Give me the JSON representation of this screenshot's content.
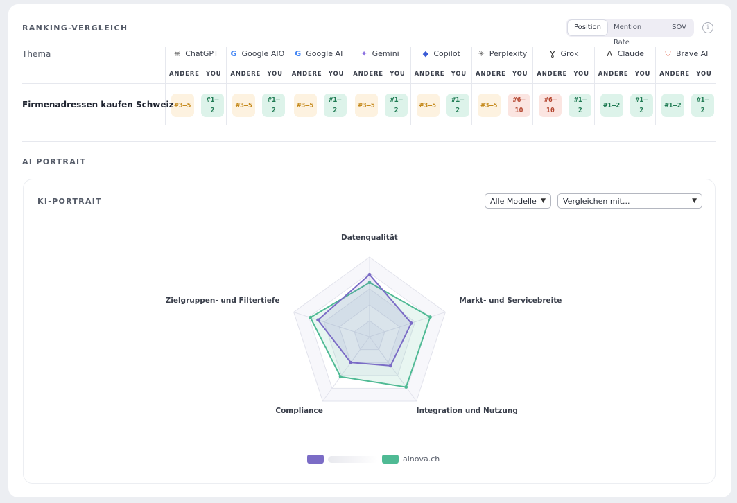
{
  "ranking": {
    "title": "RANKING-VERGLEICH",
    "segments": [
      {
        "label": "Position",
        "active": true
      },
      {
        "label": "Mention Rate",
        "active": false
      },
      {
        "label": "SOV",
        "active": false
      }
    ],
    "info_glyph": "i",
    "topic_header": "Thema",
    "sub_other": "ANDERE",
    "sub_you": "YOU",
    "models": [
      {
        "name": "ChatGPT",
        "icon": "openai-icon"
      },
      {
        "name": "Google AIO",
        "icon": "google-icon"
      },
      {
        "name": "Google AI",
        "icon": "google-icon"
      },
      {
        "name": "Gemini",
        "icon": "gemini-sparkle-icon"
      },
      {
        "name": "Copilot",
        "icon": "copilot-icon"
      },
      {
        "name": "Perplexity",
        "icon": "perplexity-icon"
      },
      {
        "name": "Grok",
        "icon": "grok-icon"
      },
      {
        "name": "Claude",
        "icon": "claude-icon"
      },
      {
        "name": "Brave AI",
        "icon": "brave-lion-icon"
      }
    ],
    "rows": [
      {
        "topic": "Firmenadressen kaufen Schweiz",
        "cells": [
          {
            "other": "#3–5",
            "you": "#1–2"
          },
          {
            "other": "#3–5",
            "you": "#1–2"
          },
          {
            "other": "#3–5",
            "you": "#1–2"
          },
          {
            "other": "#3–5",
            "you": "#1–2"
          },
          {
            "other": "#3–5",
            "you": "#1–2"
          },
          {
            "other": "#3–5",
            "you": "#6–10"
          },
          {
            "other": "#6–10",
            "you": "#1–2"
          },
          {
            "other": "#1–2",
            "you": "#1–2"
          },
          {
            "other": "#1–2",
            "you": "#1–2"
          }
        ]
      }
    ]
  },
  "portrait": {
    "section_title": "AI PORTRAIT",
    "card_title": "KI-PORTRAIT",
    "model_select": "Alle Modelle",
    "compare_select": "Vergleichen mit..."
  },
  "chart_data": {
    "type": "radar",
    "axes": [
      "Datenqualität",
      "Markt- und Servicebreite",
      "Integration und Nutzung",
      "Compliance",
      "Zielgruppen- und Filtertiefe"
    ],
    "rmax": 100,
    "series": [
      {
        "name": "",
        "color": "#7b6cc6",
        "values": [
          78,
          55,
          45,
          40,
          68
        ]
      },
      {
        "name": "ainova.ch",
        "color": "#4fba94",
        "values": [
          68,
          80,
          78,
          62,
          78
        ]
      }
    ]
  },
  "colors": {
    "orange_badge": "#fdf2e0",
    "green_badge": "#ddf3ea",
    "red_badge": "#fbe5e1"
  }
}
